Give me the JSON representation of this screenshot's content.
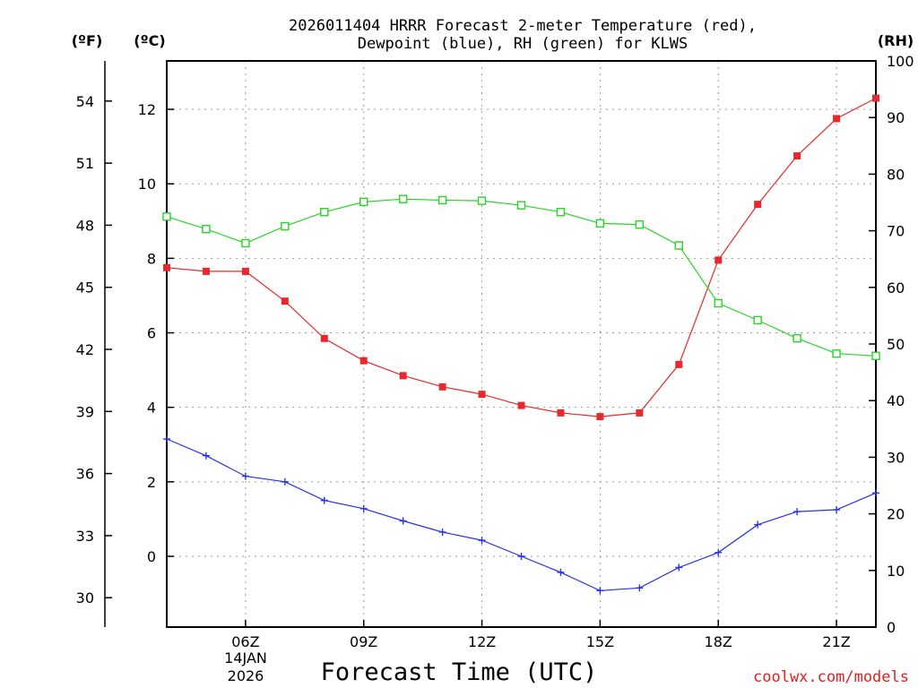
{
  "chart_data": {
    "type": "line",
    "title_line1": "2026011404 HRRR Forecast 2-meter Temperature (red),",
    "title_line2": "Dewpoint (blue), RH (green) for KLWS",
    "xlabel": "Forecast Time (UTC)",
    "credit": "coolwx.com/models",
    "date_label_day": "14JAN",
    "date_label_year": "2026",
    "x_hours": [
      4,
      5,
      6,
      7,
      8,
      9,
      10,
      11,
      12,
      13,
      14,
      15,
      16,
      17,
      18,
      19,
      20,
      21,
      22
    ],
    "xlim": [
      4,
      22
    ],
    "x_ticks": [
      {
        "hour": 6,
        "label": "06Z"
      },
      {
        "hour": 9,
        "label": "09Z"
      },
      {
        "hour": 12,
        "label": "12Z"
      },
      {
        "hour": 15,
        "label": "15Z"
      },
      {
        "hour": 18,
        "label": "18Z"
      },
      {
        "hour": 21,
        "label": "21Z"
      }
    ],
    "left_unit_f": "(ºF)",
    "left_unit_c": "(ºC)",
    "right_unit": "(RH)",
    "c_axis": {
      "range": [
        -1.9,
        13.3
      ],
      "ticks": [
        0,
        2,
        4,
        6,
        8,
        10,
        12
      ]
    },
    "f_axis": {
      "ticks": [
        30,
        33,
        36,
        39,
        42,
        45,
        48,
        51,
        54
      ]
    },
    "rh_axis": {
      "range": [
        0,
        100
      ],
      "ticks": [
        0,
        10,
        20,
        30,
        40,
        50,
        60,
        70,
        80,
        90,
        100
      ]
    },
    "series": [
      {
        "name": "Temperature",
        "axis": "c",
        "color": "#e8282d",
        "marker": "filled-square",
        "values": [
          7.75,
          7.65,
          7.65,
          6.85,
          5.85,
          5.25,
          4.85,
          4.55,
          4.35,
          4.05,
          3.85,
          3.75,
          3.85,
          5.15,
          7.95,
          9.45,
          10.75,
          11.75,
          12.3
        ]
      },
      {
        "name": "Dewpoint",
        "axis": "c",
        "color": "#2832e8",
        "marker": "plus",
        "values": [
          3.15,
          2.7,
          2.15,
          2.0,
          1.5,
          1.28,
          0.95,
          0.65,
          0.43,
          0.0,
          -0.43,
          -0.92,
          -0.85,
          -0.3,
          0.1,
          0.85,
          1.2,
          1.25,
          1.7
        ]
      },
      {
        "name": "RH",
        "axis": "rh",
        "color": "#28d428",
        "marker": "open-square",
        "values": [
          72.5,
          70.3,
          67.8,
          70.8,
          73.3,
          75.1,
          75.6,
          75.4,
          75.3,
          74.5,
          73.3,
          71.3,
          71.1,
          67.4,
          57.2,
          54.2,
          51.0,
          48.3,
          47.9
        ]
      }
    ]
  }
}
